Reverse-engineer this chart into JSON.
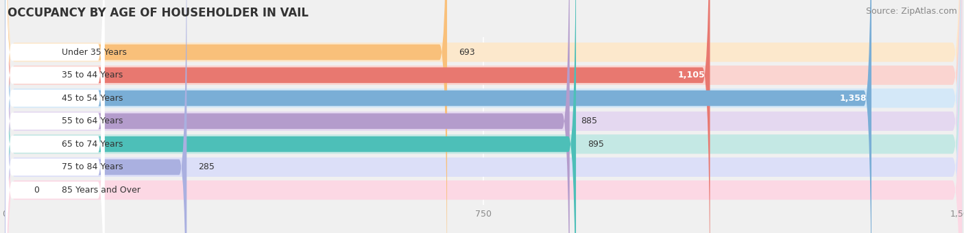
{
  "title": "OCCUPANCY BY AGE OF HOUSEHOLDER IN VAIL",
  "source": "Source: ZipAtlas.com",
  "categories": [
    "Under 35 Years",
    "35 to 44 Years",
    "45 to 54 Years",
    "55 to 64 Years",
    "65 to 74 Years",
    "75 to 84 Years",
    "85 Years and Over"
  ],
  "values": [
    693,
    1105,
    1358,
    885,
    895,
    285,
    0
  ],
  "bar_colors": [
    "#f9c07a",
    "#e87870",
    "#7aaed6",
    "#b49ccc",
    "#4dbfb8",
    "#aab0e0",
    "#f4a0b8"
  ],
  "bar_bg_colors": [
    "#fce8cc",
    "#fad4d0",
    "#d4e8f8",
    "#e4d8f0",
    "#c4e8e4",
    "#dcdff8",
    "#fcd8e4"
  ],
  "label_bg_color": "#ffffff",
  "xlim_max": 1500,
  "xticks": [
    0,
    750,
    1500
  ],
  "title_fontsize": 12,
  "source_fontsize": 9,
  "value_fontsize": 9,
  "cat_fontsize": 9,
  "tick_fontsize": 9,
  "background_color": "#f0f0f0",
  "bar_bg_panel_color": "#e8e8e8"
}
